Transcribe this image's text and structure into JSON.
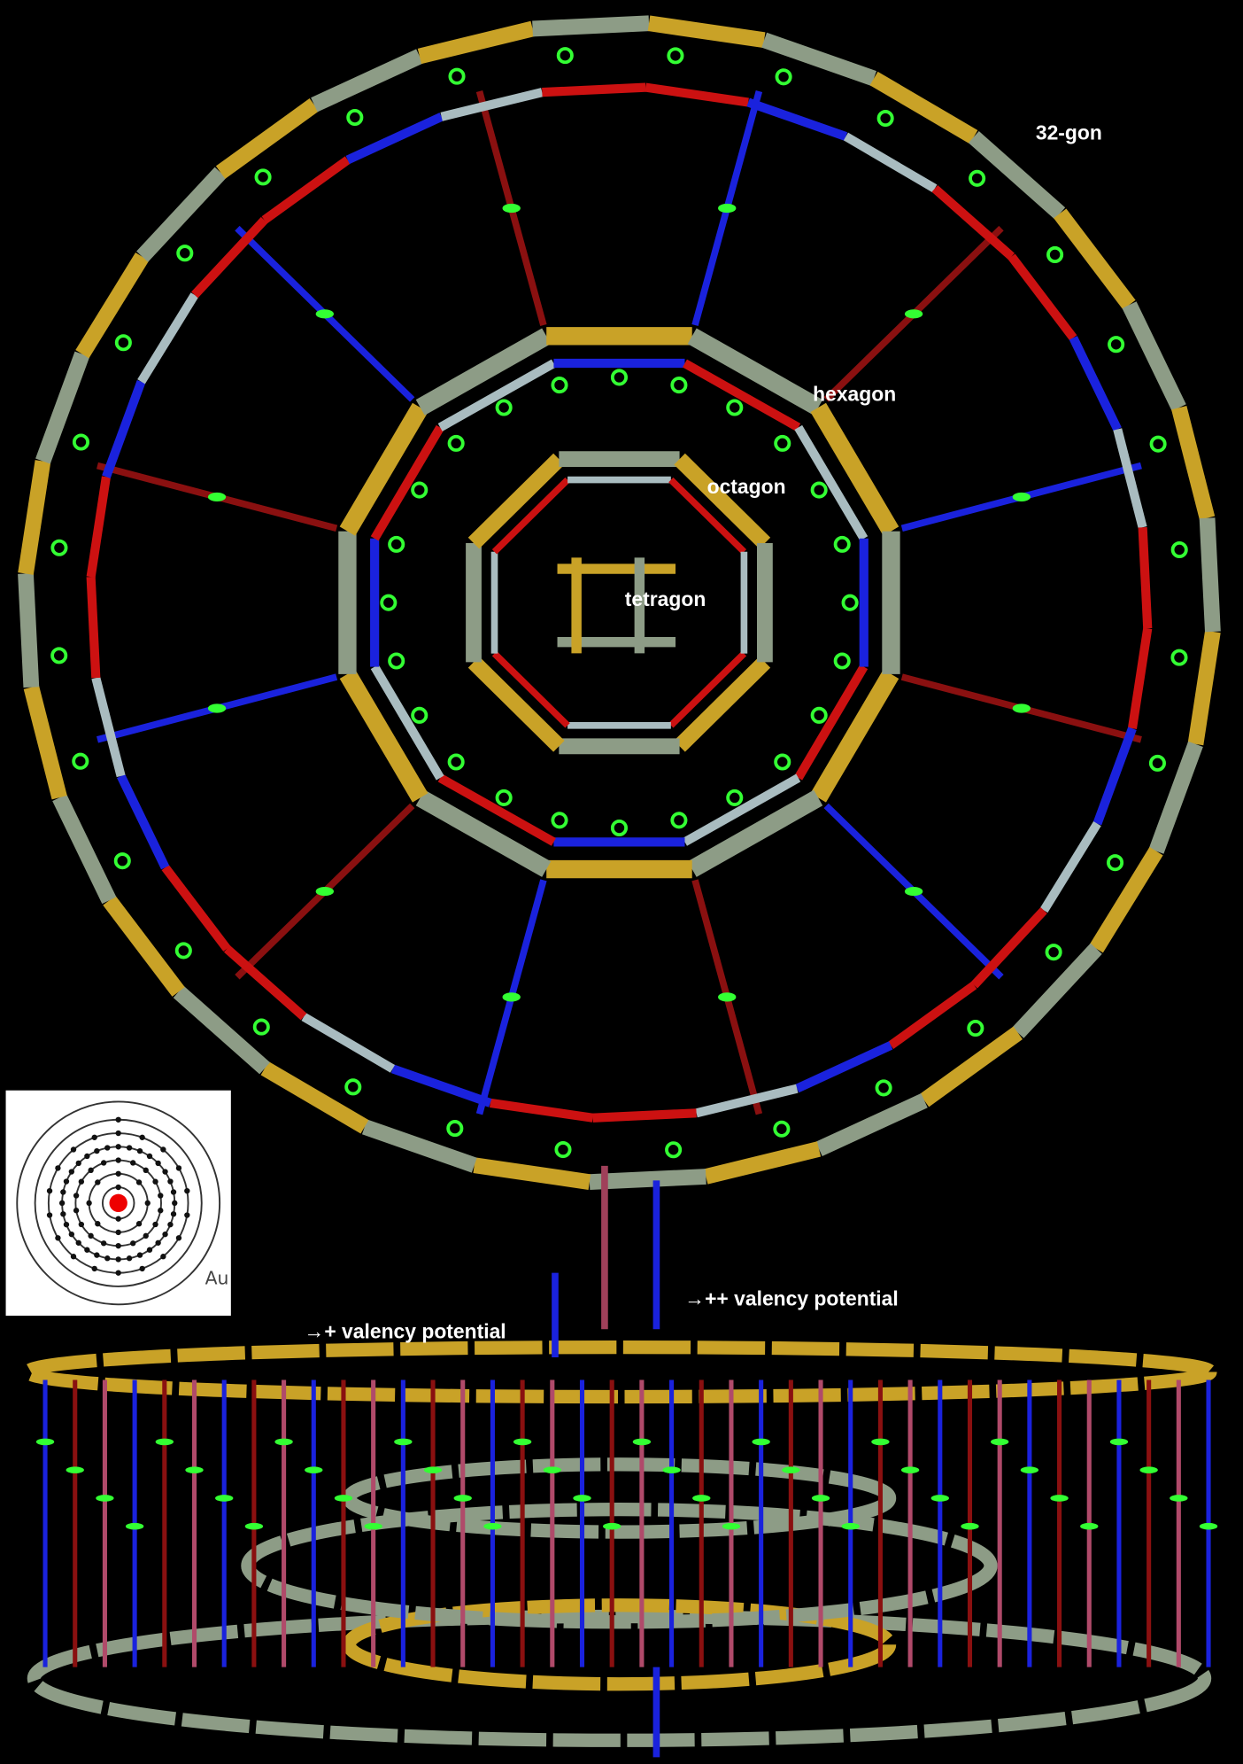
{
  "labels": {
    "ring_32": "32-gon",
    "hexagon": "hexagon",
    "octagon": "octagon",
    "tetragon": "tetragon"
  },
  "inset": {
    "element": "Au"
  },
  "annotations": {
    "plus": "→+ valency potential",
    "plus_plus": "→++ valency potential"
  }
}
